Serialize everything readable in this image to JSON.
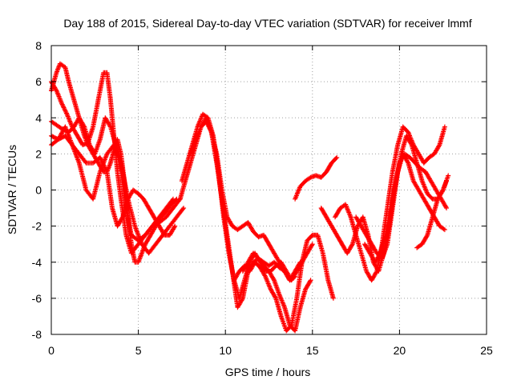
{
  "chart_data": {
    "type": "scatter",
    "title": "Day 188 of 2015, Sidereal Day-to-day VTEC variation (SDTVAR) for receiver lmmf",
    "xlabel": "GPS time / hours",
    "ylabel": "SDTVAR / TECUs",
    "xlim": [
      0,
      25
    ],
    "ylim": [
      -8,
      8
    ],
    "xticks": [
      "0",
      "5",
      "10",
      "15",
      "20",
      "25"
    ],
    "yticks": [
      "-8",
      "-6",
      "-4",
      "-2",
      "0",
      "2",
      "4",
      "6",
      "8"
    ],
    "grid": true,
    "marker": "plus",
    "color": "#ff0000",
    "series": [
      {
        "x": [
          0.0,
          0.3,
          0.5,
          0.8,
          1.0,
          1.3,
          1.6,
          1.9,
          2.1,
          2.4,
          2.7,
          3.0,
          3.2,
          3.4,
          3.6,
          3.8,
          4.0,
          4.2,
          4.4,
          4.6,
          4.8,
          5.0,
          5.2,
          5.4,
          5.7,
          6.0,
          6.3,
          6.6,
          6.9,
          7.2
        ],
        "y": [
          5.5,
          6.5,
          7.0,
          6.8,
          6.0,
          5.0,
          4.0,
          3.0,
          2.5,
          2.0,
          1.5,
          1.0,
          1.0,
          1.5,
          2.2,
          2.8,
          2.0,
          0.5,
          -1.5,
          -3.0,
          -4.0,
          -4.0,
          -3.5,
          -3.0,
          -2.5,
          -2.0,
          -1.5,
          -1.2,
          -0.8,
          -0.5
        ]
      },
      {
        "x": [
          0.0,
          0.3,
          0.6,
          0.9,
          1.2,
          1.5,
          1.8,
          2.1,
          2.4,
          2.7,
          3.0,
          3.2,
          3.4,
          3.6,
          3.8,
          4.0,
          4.3,
          4.6,
          5.0,
          5.4,
          5.8,
          6.2,
          6.6,
          7.0
        ],
        "y": [
          6.0,
          5.5,
          4.8,
          4.2,
          3.5,
          3.0,
          2.5,
          2.6,
          3.5,
          5.0,
          6.5,
          6.5,
          5.0,
          3.0,
          1.0,
          -0.5,
          -2.5,
          -3.5,
          -3.0,
          -2.5,
          -2.0,
          -1.5,
          -1.0,
          -0.5
        ]
      },
      {
        "x": [
          0.0,
          0.3,
          0.6,
          1.0,
          1.3,
          1.6,
          1.9,
          2.2,
          2.5,
          2.8,
          3.1,
          3.4,
          3.7,
          4.0,
          4.3,
          4.6,
          5.0,
          5.4,
          5.8,
          6.2,
          6.6,
          7.0,
          7.4
        ],
        "y": [
          3.8,
          3.6,
          3.4,
          3.2,
          3.5,
          4.0,
          3.5,
          2.5,
          2.0,
          2.8,
          4.0,
          3.5,
          2.5,
          1.0,
          -1.0,
          -2.5,
          -2.8,
          -2.5,
          -2.0,
          -1.8,
          -1.5,
          -1.0,
          -0.5
        ]
      },
      {
        "x": [
          0.0,
          0.4,
          0.8,
          1.2,
          1.6,
          2.0,
          2.4,
          2.8,
          3.2,
          3.6,
          4.0,
          4.4,
          4.8,
          5.2,
          5.6,
          6.0,
          6.4,
          6.8,
          7.2,
          7.6
        ],
        "y": [
          3.0,
          2.8,
          3.5,
          2.5,
          1.5,
          0.0,
          -0.5,
          1.0,
          2.0,
          2.5,
          1.5,
          -0.5,
          -2.0,
          -3.0,
          -3.5,
          -3.0,
          -2.5,
          -2.0,
          -1.5,
          -1.0
        ]
      },
      {
        "x": [
          0.0,
          0.4,
          0.8,
          1.2,
          1.6,
          2.0,
          2.4,
          2.8,
          3.2,
          3.5,
          3.8,
          4.1,
          4.4,
          4.7,
          5.0,
          5.3,
          5.6,
          5.9,
          6.2,
          6.5,
          6.8,
          7.1
        ],
        "y": [
          2.5,
          2.8,
          3.0,
          2.5,
          2.0,
          1.5,
          1.5,
          1.8,
          1.0,
          -1.0,
          -2.0,
          -1.5,
          -0.5,
          0.0,
          -0.2,
          -0.5,
          -1.0,
          -1.5,
          -2.0,
          -2.5,
          -2.5,
          -2.0
        ]
      },
      {
        "x": [
          7.5,
          7.8,
          8.1,
          8.4,
          8.7,
          9.0,
          9.3,
          9.6,
          9.9,
          10.2,
          10.5,
          10.8,
          11.1,
          11.4,
          11.7,
          12.0,
          12.3,
          12.6,
          12.9,
          13.2,
          13.5,
          13.8,
          14.1,
          14.4,
          14.7,
          15.0
        ],
        "y": [
          0.5,
          1.5,
          2.5,
          3.5,
          4.2,
          4.0,
          3.0,
          1.0,
          -1.5,
          -3.5,
          -5.0,
          -6.0,
          -5.0,
          -4.0,
          -3.5,
          -4.0,
          -4.5,
          -4.5,
          -4.2,
          -4.0,
          -4.5,
          -5.0,
          -4.5,
          -4.0,
          -3.5,
          -3.0
        ]
      },
      {
        "x": [
          7.4,
          7.7,
          8.0,
          8.3,
          8.6,
          8.9,
          9.2,
          9.5,
          9.8,
          10.1,
          10.4,
          10.7,
          11.0,
          11.3,
          11.6,
          11.9,
          12.2,
          12.5,
          12.8,
          13.1,
          13.4,
          13.7,
          14.0
        ],
        "y": [
          -0.5,
          0.5,
          1.5,
          2.5,
          3.5,
          4.0,
          3.2,
          1.5,
          -0.5,
          -2.5,
          -4.5,
          -6.5,
          -6.0,
          -4.5,
          -4.0,
          -3.8,
          -4.0,
          -4.2,
          -4.0,
          -4.3,
          -4.5,
          -5.0,
          -4.8
        ]
      },
      {
        "x": [
          8.0,
          8.3,
          8.6,
          8.9,
          9.2,
          9.5,
          9.8,
          10.1,
          10.4,
          10.7,
          11.0,
          11.3,
          11.6,
          11.9,
          12.2,
          12.5,
          12.8,
          13.1,
          13.4,
          13.7,
          14.0,
          14.3
        ],
        "y": [
          2.0,
          2.8,
          3.5,
          3.8,
          3.2,
          2.0,
          0.0,
          -1.5,
          -2.0,
          -2.2,
          -2.0,
          -1.8,
          -2.3,
          -2.6,
          -2.5,
          -3.0,
          -3.5,
          -4.0,
          -4.5,
          -5.0,
          -4.5,
          -4.0
        ]
      },
      {
        "x": [
          10.5,
          10.8,
          11.1,
          11.4,
          11.7,
          12.0,
          12.3,
          12.6,
          12.9,
          13.2,
          13.5,
          13.8,
          14.1,
          14.4,
          14.7,
          15.0,
          15.3,
          15.6,
          15.9,
          16.2
        ],
        "y": [
          -5.0,
          -4.5,
          -4.2,
          -4.5,
          -4.0,
          -4.3,
          -4.8,
          -5.5,
          -6.0,
          -7.0,
          -7.8,
          -7.5,
          -6.0,
          -4.0,
          -2.8,
          -2.5,
          -2.5,
          -3.5,
          -5.0,
          -6.0
        ]
      },
      {
        "x": [
          11.0,
          11.3,
          11.6,
          11.9,
          12.2,
          12.5,
          12.8,
          13.1,
          13.4,
          13.7,
          14.0,
          14.3,
          14.6,
          14.9
        ],
        "y": [
          -4.5,
          -4.0,
          -3.5,
          -3.8,
          -4.2,
          -4.5,
          -5.0,
          -5.8,
          -6.5,
          -7.5,
          -7.8,
          -6.5,
          -5.5,
          -5.0
        ]
      },
      {
        "x": [
          14.0,
          14.3,
          14.6,
          14.9,
          15.2,
          15.5,
          15.8,
          16.1,
          16.4
        ],
        "y": [
          -0.5,
          0.2,
          0.5,
          0.7,
          0.8,
          0.7,
          1.0,
          1.5,
          1.8
        ]
      },
      {
        "x": [
          15.5,
          15.8,
          16.1,
          16.4,
          16.7,
          17.0,
          17.3,
          17.6,
          17.9,
          18.2,
          18.5,
          18.8,
          19.1,
          19.4,
          19.7,
          20.0,
          20.3,
          20.6,
          20.9,
          21.2,
          21.5,
          21.8,
          22.1,
          22.4,
          22.7
        ],
        "y": [
          -1.0,
          -1.5,
          -2.0,
          -2.5,
          -3.0,
          -3.5,
          -3.0,
          -2.0,
          -1.5,
          -2.5,
          -4.0,
          -4.5,
          -3.5,
          -2.0,
          0.0,
          1.5,
          2.0,
          1.8,
          1.5,
          1.2,
          1.0,
          0.5,
          0.0,
          -0.5,
          -1.0
        ]
      },
      {
        "x": [
          16.3,
          16.6,
          16.9,
          17.2,
          17.5,
          17.8,
          18.1,
          18.4,
          18.7,
          19.0,
          19.3,
          19.6,
          19.9,
          20.2,
          20.5,
          20.8,
          21.1,
          21.4,
          21.7,
          22.0,
          22.3,
          22.6
        ],
        "y": [
          -1.5,
          -1.0,
          -0.8,
          -1.5,
          -2.5,
          -3.5,
          -4.5,
          -5.0,
          -4.5,
          -3.0,
          -1.0,
          1.0,
          2.5,
          3.5,
          3.2,
          2.5,
          2.0,
          1.5,
          1.8,
          2.0,
          2.5,
          3.5
        ]
      },
      {
        "x": [
          17.5,
          17.8,
          18.1,
          18.4,
          18.7,
          19.0,
          19.3,
          19.6,
          19.9,
          20.2,
          20.5,
          20.8,
          21.1,
          21.4,
          21.7,
          22.0,
          22.3,
          22.6
        ],
        "y": [
          -1.5,
          -2.0,
          -2.5,
          -3.0,
          -3.5,
          -3.8,
          -3.0,
          -1.0,
          1.0,
          2.0,
          1.5,
          0.5,
          0.0,
          -0.5,
          -1.0,
          -1.5,
          -2.0,
          -2.2
        ]
      },
      {
        "x": [
          18.0,
          18.3,
          18.6,
          18.9,
          19.2,
          19.5,
          19.8,
          20.1,
          20.4,
          20.7,
          21.0,
          21.3,
          21.6,
          21.9,
          22.2,
          22.5,
          22.7
        ],
        "y": [
          -3.0,
          -3.5,
          -4.0,
          -3.5,
          -2.5,
          -1.0,
          0.5,
          2.0,
          3.0,
          2.5,
          1.5,
          0.5,
          -0.2,
          -0.5,
          -0.5,
          0.0,
          0.5
        ]
      },
      {
        "x": [
          21.0,
          21.3,
          21.6,
          21.9,
          22.2,
          22.5,
          22.8
        ],
        "y": [
          -3.2,
          -3.0,
          -2.5,
          -1.5,
          -0.5,
          0.0,
          0.8
        ]
      }
    ]
  }
}
